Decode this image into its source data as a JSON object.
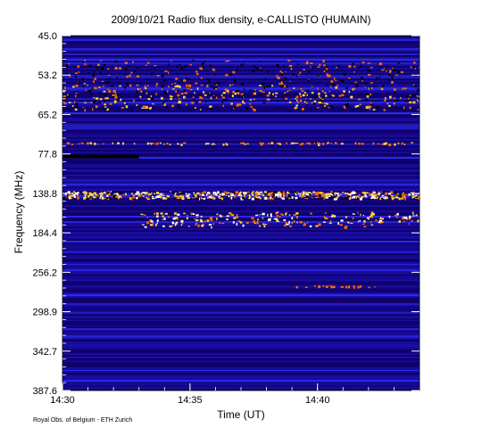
{
  "chart_data": {
    "type": "heatmap",
    "title": "2009/10/21  Radio flux density, e-CALLISTO (HUMAIN)",
    "xlabel": "Time (UT)",
    "ylabel": "Frequency (MHz)",
    "x_ticks": [
      "14:30",
      "14:35",
      "14:40"
    ],
    "y_ticks": [
      "45.0",
      "53.2",
      "65.2",
      "77.8",
      "138.8",
      "184.4",
      "256.2",
      "298.9",
      "342.7",
      "387.6"
    ],
    "xlim": [
      "14:30",
      "14:44"
    ],
    "ylim_mhz": [
      45.0,
      387.6
    ],
    "y_axis_inverted": true,
    "colormap": [
      "#10006e",
      "#1a0fa8",
      "#2d2df0",
      "#ff6a00",
      "#ffd23a",
      "#ffffff"
    ],
    "features": [
      {
        "name": "drifting interference band",
        "freq_mhz": [
          50,
          56
        ],
        "time": [
          "14:30",
          "14:44"
        ]
      },
      {
        "name": "strong band",
        "freq_mhz": [
          56,
          63
        ],
        "time": [
          "14:30",
          "14:44"
        ]
      },
      {
        "name": "persistent emission line",
        "freq_mhz": 74,
        "time": [
          "14:30",
          "14:44"
        ]
      },
      {
        "name": "dark gap",
        "freq_mhz": [
          79,
          82
        ],
        "time": [
          "14:30",
          "14:33"
        ]
      },
      {
        "name": "intense emission band",
        "freq_mhz": [
          135,
          142
        ],
        "time": [
          "14:30",
          "14:44"
        ]
      },
      {
        "name": "bursty emission",
        "freq_mhz": [
          160,
          175
        ],
        "time": [
          "14:33",
          "14:44"
        ]
      },
      {
        "name": "weak features",
        "freq_mhz": 270,
        "time": [
          "14:39",
          "14:43"
        ]
      }
    ]
  },
  "credit": "Royal Obs. of Belgium - ETH Zurich"
}
